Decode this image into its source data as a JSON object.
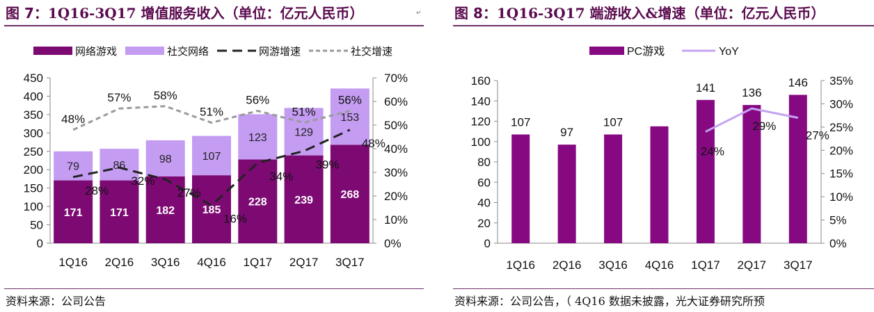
{
  "colors": {
    "game": "#7d0a73",
    "social": "#c49cf2",
    "game_growth": "#222222",
    "social_growth": "#9a9a9a",
    "title": "#5a0a4e",
    "pc": "#860982",
    "yoy": "#c5a3f1",
    "rule": "#6b2e6a"
  },
  "left": {
    "title_prefix": "图 7：",
    "title_main": "1Q16-3Q17 增值服务收入（单位：亿元人民币）",
    "source": "资料来源：公司公告"
  },
  "right": {
    "title_prefix": "图 8：",
    "title_main": "1Q16-3Q17  端游收入&增速（单位：亿元人民币）",
    "source": "资料来源：公司公告，（ 4Q16 数据未披露，光大证券研究所预"
  },
  "chart_data": [
    {
      "type": "bar",
      "stacked": true,
      "categories": [
        "1Q16",
        "2Q16",
        "3Q16",
        "4Q16",
        "1Q17",
        "2Q17",
        "3Q17"
      ],
      "series": [
        {
          "name": "网络游戏",
          "type": "bar",
          "axis": "left",
          "values": [
            171,
            171,
            182,
            185,
            228,
            239,
            268
          ]
        },
        {
          "name": "社交网络",
          "type": "bar",
          "axis": "left",
          "values": [
            79,
            86,
            98,
            107,
            123,
            129,
            153
          ]
        },
        {
          "name": "网游增速",
          "type": "line",
          "axis": "right",
          "style": "dashed",
          "values": [
            28,
            32,
            27,
            16,
            34,
            39,
            48
          ]
        },
        {
          "name": "社交增速",
          "type": "line",
          "axis": "right",
          "style": "dashed",
          "values": [
            48,
            57,
            58,
            51,
            56,
            51,
            56
          ]
        }
      ],
      "ylim": [
        0,
        450
      ],
      "yticks": [
        "0",
        "50",
        "100",
        "150",
        "200",
        "250",
        "300",
        "350",
        "400",
        "450"
      ],
      "y2lim": [
        0,
        70
      ],
      "y2ticks": [
        "0%",
        "10%",
        "20%",
        "30%",
        "40%",
        "50%",
        "60%",
        "70%"
      ],
      "legend": "top",
      "grid": false
    },
    {
      "type": "bar",
      "categories": [
        "1Q16",
        "2Q16",
        "3Q16",
        "4Q16",
        "1Q17",
        "2Q17",
        "3Q17"
      ],
      "series": [
        {
          "name": "PC游戏",
          "type": "bar",
          "axis": "left",
          "values": [
            107,
            97,
            107,
            115,
            141,
            136,
            146
          ],
          "labels": [
            "107",
            "97",
            "107",
            "",
            "141",
            "136",
            "146"
          ]
        },
        {
          "name": "YoY",
          "type": "line",
          "axis": "right",
          "values": [
            null,
            null,
            null,
            null,
            24,
            29,
            27
          ]
        }
      ],
      "ylim": [
        0,
        160
      ],
      "yticks": [
        "0",
        "20",
        "40",
        "60",
        "80",
        "100",
        "120",
        "140",
        "160"
      ],
      "y2lim": [
        0,
        35
      ],
      "y2ticks": [
        "0%",
        "5%",
        "10%",
        "15%",
        "20%",
        "25%",
        "30%",
        "35%"
      ],
      "legend": "top",
      "grid": false
    }
  ]
}
